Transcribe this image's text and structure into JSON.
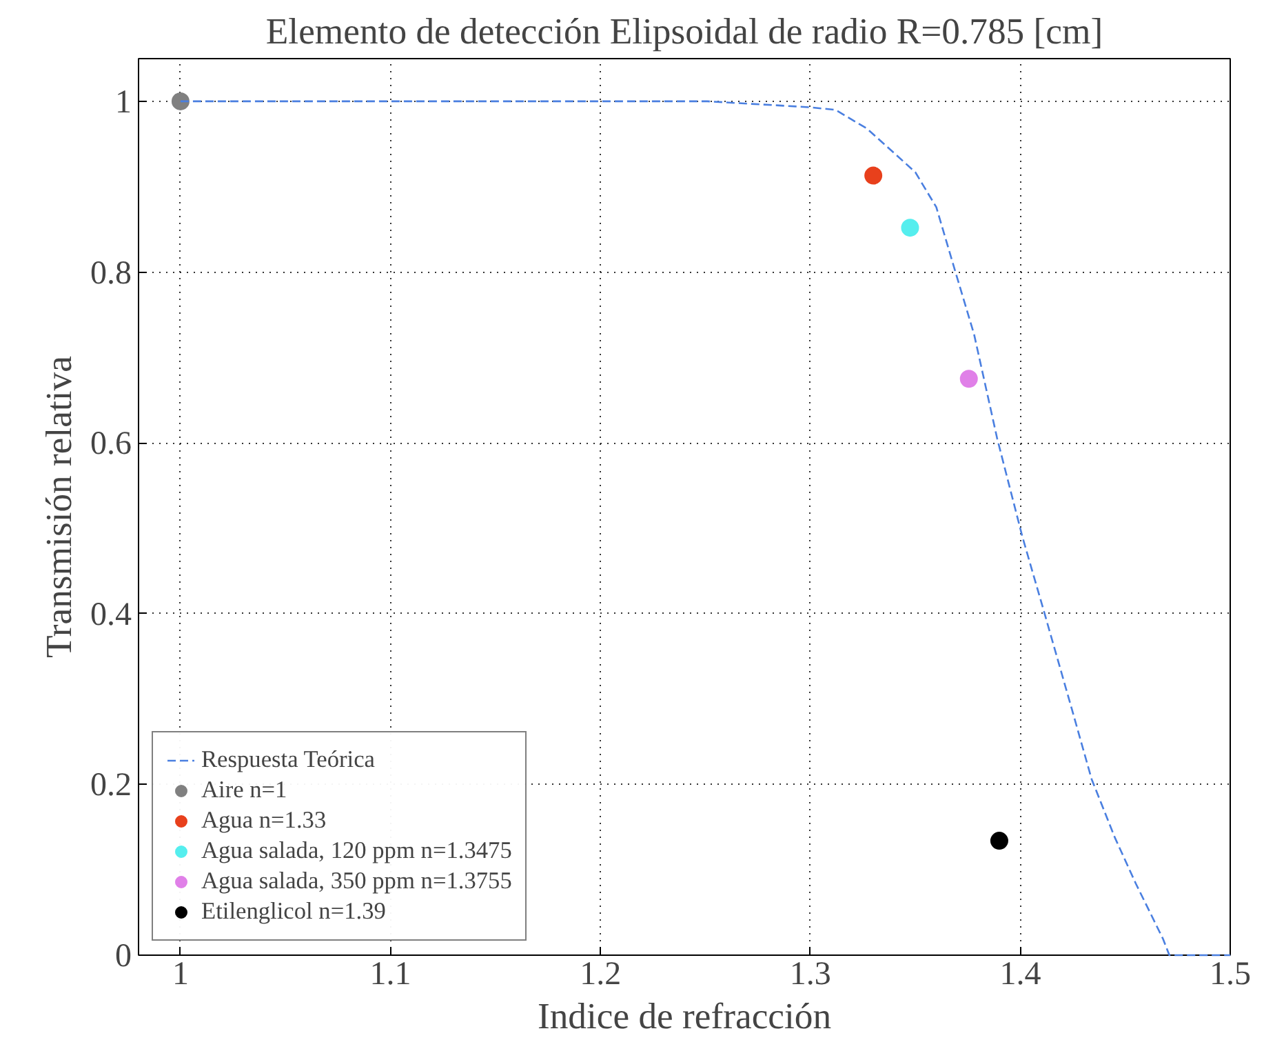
{
  "chart_data": {
    "type": "scatter",
    "title": "Elemento de detección Elipsoidal de radio R=0.785 [cm]",
    "xlabel": "Indice de refracción",
    "ylabel": "Transmisión relativa",
    "xlim": [
      0.98,
      1.5
    ],
    "ylim": [
      0,
      1.05
    ],
    "xticks": [
      1,
      1.1,
      1.2,
      1.3,
      1.4,
      1.5
    ],
    "yticks": [
      0,
      0.2,
      0.4,
      0.6,
      0.8,
      1
    ],
    "grid": true,
    "legend": "bottom left",
    "marker": "circle",
    "series": [
      {
        "name": "Respuesta Teórica",
        "type": "line",
        "line_style": "dashed",
        "marker": "none",
        "color": "#4a7fe0",
        "x": [
          1,
          1.251,
          1.3,
          1.312,
          1.327,
          1.35,
          1.36,
          1.369,
          1.378,
          1.389,
          1.401,
          1.411,
          1.424,
          1.434,
          1.445,
          1.455,
          1.468,
          1.471,
          1.5
        ],
        "values": [
          1,
          1,
          0.993,
          0.99,
          0.968,
          0.917,
          0.876,
          0.801,
          0.727,
          0.605,
          0.49,
          0.405,
          0.293,
          0.206,
          0.138,
          0.084,
          0.019,
          0,
          0
        ]
      },
      {
        "name": "Aire n=1",
        "color": "#808080",
        "x": [
          1
        ],
        "values": [
          1
        ]
      },
      {
        "name": "Agua n=1.33",
        "color": "#e8401c",
        "x": [
          1.33
        ],
        "values": [
          0.913
        ]
      },
      {
        "name": "Agua salada, 120 ppm n=1.3475",
        "color": "#55eeee",
        "x": [
          1.3475
        ],
        "values": [
          0.852
        ]
      },
      {
        "name": "Agua salada, 350 ppm n=1.3755",
        "color": "#e080e8",
        "x": [
          1.3755
        ],
        "values": [
          0.675
        ]
      },
      {
        "name": "Etilenglicol n=1.39",
        "color": "#000000",
        "x": [
          1.39
        ],
        "values": [
          0.134
        ]
      }
    ]
  }
}
